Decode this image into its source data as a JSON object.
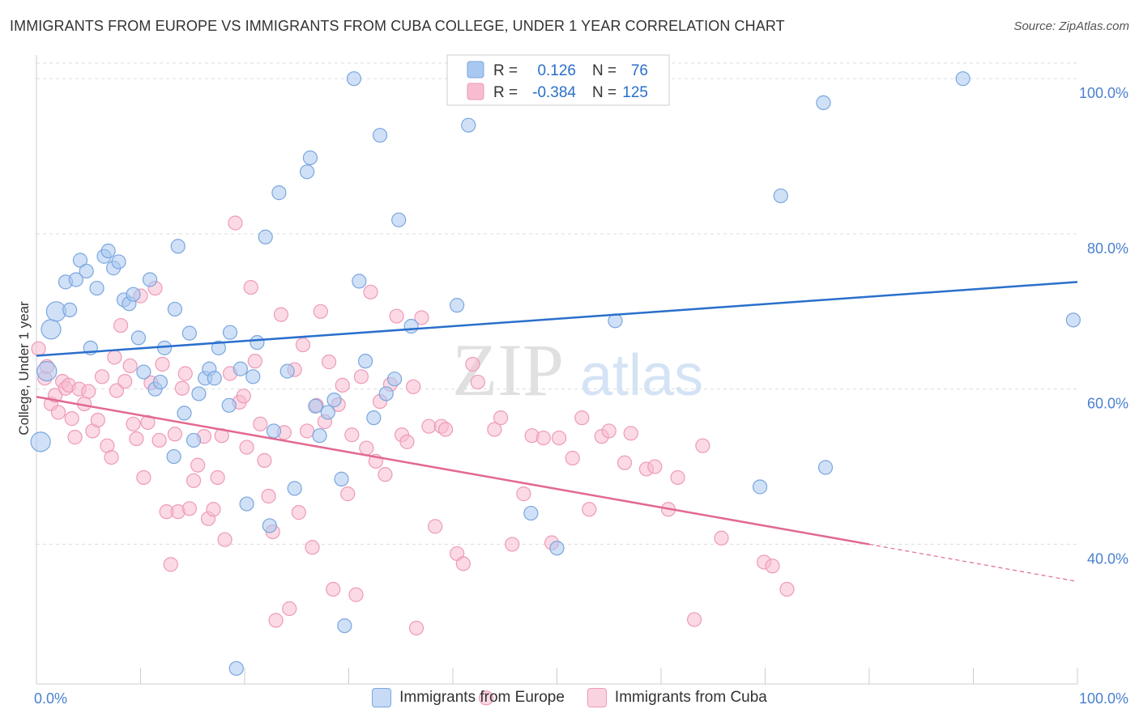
{
  "header": {
    "title": "IMMIGRANTS FROM EUROPE VS IMMIGRANTS FROM CUBA COLLEGE, UNDER 1 YEAR CORRELATION CHART",
    "source": "Source: ZipAtlas.com"
  },
  "watermark": {
    "zip": "ZIP",
    "atlas": "atlas"
  },
  "legend_top": [
    {
      "r_label": "R =",
      "r_value": "0.126",
      "n_label": "N =",
      "n_value": "76"
    },
    {
      "r_label": "R =",
      "r_value": "-0.384",
      "n_label": "N =",
      "n_value": "125"
    }
  ],
  "legend_bottom": [
    {
      "label": "Immigrants from Europe"
    },
    {
      "label": "Immigrants from Cuba"
    }
  ],
  "colors": {
    "europe_fill": "#a9c8f0",
    "europe_stroke": "#7aa6df",
    "europe_line": "#2a6fcc",
    "cuba_fill": "#f7bcd0",
    "cuba_stroke": "#ee9ab8",
    "cuba_line": "#e2698f",
    "tick_label": "#4a80d0",
    "grid": "#dddddd"
  },
  "chart_data": {
    "type": "scatter",
    "xlabel": "",
    "ylabel": "College, Under 1 year",
    "xlim": [
      0,
      100
    ],
    "ylim": [
      22,
      102
    ],
    "x_tick_labels": [
      "0.0%",
      "100.0%"
    ],
    "y_ticks": [
      40,
      60,
      80,
      100
    ],
    "y_tick_labels": [
      "40.0%",
      "60.0%",
      "80.0%",
      "100.0%"
    ],
    "grid": true,
    "series": [
      {
        "name": "Immigrants from Europe",
        "trend": {
          "x": [
            0,
            100
          ],
          "y": [
            64.3,
            73.8
          ]
        },
        "points": [
          {
            "x": 0.4,
            "y": 53.2
          },
          {
            "x": 1.0,
            "y": 62.3
          },
          {
            "x": 1.4,
            "y": 67.7
          },
          {
            "x": 1.9,
            "y": 70.0
          },
          {
            "x": 3.2,
            "y": 70.2
          },
          {
            "x": 2.8,
            "y": 73.8
          },
          {
            "x": 3.8,
            "y": 74.1
          },
          {
            "x": 4.2,
            "y": 76.6
          },
          {
            "x": 4.8,
            "y": 75.2
          },
          {
            "x": 5.2,
            "y": 65.3
          },
          {
            "x": 5.8,
            "y": 73.0
          },
          {
            "x": 6.5,
            "y": 77.1
          },
          {
            "x": 6.9,
            "y": 77.8
          },
          {
            "x": 7.4,
            "y": 75.6
          },
          {
            "x": 7.9,
            "y": 76.4
          },
          {
            "x": 8.4,
            "y": 71.5
          },
          {
            "x": 8.9,
            "y": 71.0
          },
          {
            "x": 9.3,
            "y": 72.2
          },
          {
            "x": 9.8,
            "y": 66.6
          },
          {
            "x": 10.3,
            "y": 62.2
          },
          {
            "x": 10.9,
            "y": 74.1
          },
          {
            "x": 11.4,
            "y": 60.0
          },
          {
            "x": 11.9,
            "y": 60.9
          },
          {
            "x": 12.3,
            "y": 65.3
          },
          {
            "x": 13.2,
            "y": 51.3
          },
          {
            "x": 13.3,
            "y": 70.3
          },
          {
            "x": 13.6,
            "y": 78.4
          },
          {
            "x": 14.2,
            "y": 56.9
          },
          {
            "x": 14.7,
            "y": 67.2
          },
          {
            "x": 15.1,
            "y": 53.4
          },
          {
            "x": 15.6,
            "y": 59.4
          },
          {
            "x": 16.2,
            "y": 61.4
          },
          {
            "x": 16.6,
            "y": 62.6
          },
          {
            "x": 17.1,
            "y": 61.4
          },
          {
            "x": 17.5,
            "y": 65.3
          },
          {
            "x": 18.5,
            "y": 57.9
          },
          {
            "x": 18.6,
            "y": 67.3
          },
          {
            "x": 19.2,
            "y": 24.0
          },
          {
            "x": 19.6,
            "y": 62.6
          },
          {
            "x": 20.2,
            "y": 45.2
          },
          {
            "x": 20.8,
            "y": 61.6
          },
          {
            "x": 21.2,
            "y": 66.0
          },
          {
            "x": 22.0,
            "y": 79.6
          },
          {
            "x": 22.4,
            "y": 42.4
          },
          {
            "x": 22.8,
            "y": 54.6
          },
          {
            "x": 23.3,
            "y": 85.3
          },
          {
            "x": 24.1,
            "y": 62.3
          },
          {
            "x": 24.8,
            "y": 47.2
          },
          {
            "x": 26.0,
            "y": 88.0
          },
          {
            "x": 26.3,
            "y": 89.8
          },
          {
            "x": 26.8,
            "y": 57.8
          },
          {
            "x": 27.2,
            "y": 54.0
          },
          {
            "x": 28.0,
            "y": 57.0
          },
          {
            "x": 28.6,
            "y": 58.6
          },
          {
            "x": 29.3,
            "y": 48.4
          },
          {
            "x": 29.6,
            "y": 29.5
          },
          {
            "x": 30.5,
            "y": 100.0
          },
          {
            "x": 31.0,
            "y": 73.9
          },
          {
            "x": 31.6,
            "y": 63.6
          },
          {
            "x": 32.4,
            "y": 56.3
          },
          {
            "x": 33.0,
            "y": 92.7
          },
          {
            "x": 33.6,
            "y": 59.4
          },
          {
            "x": 34.4,
            "y": 61.3
          },
          {
            "x": 34.8,
            "y": 81.8
          },
          {
            "x": 36.0,
            "y": 68.1
          },
          {
            "x": 40.4,
            "y": 70.8
          },
          {
            "x": 41.5,
            "y": 94.0
          },
          {
            "x": 47.5,
            "y": 44.0
          },
          {
            "x": 50.0,
            "y": 39.5
          },
          {
            "x": 51.0,
            "y": 100.0
          },
          {
            "x": 55.6,
            "y": 68.8
          },
          {
            "x": 69.5,
            "y": 47.4
          },
          {
            "x": 71.5,
            "y": 84.9
          },
          {
            "x": 75.6,
            "y": 96.9
          },
          {
            "x": 75.8,
            "y": 49.9
          },
          {
            "x": 89.0,
            "y": 100.0
          },
          {
            "x": 99.6,
            "y": 68.9
          }
        ]
      },
      {
        "name": "Immigrants from Cuba",
        "trend": {
          "x": [
            0,
            80
          ],
          "y": [
            59.0,
            40.0
          ]
        },
        "trend_dash": {
          "x": [
            80,
            100
          ],
          "y": [
            40.0,
            35.2
          ]
        },
        "points": [
          {
            "x": 0.2,
            "y": 65.2
          },
          {
            "x": 0.8,
            "y": 61.4
          },
          {
            "x": 1.0,
            "y": 62.9
          },
          {
            "x": 1.4,
            "y": 58.1
          },
          {
            "x": 1.8,
            "y": 59.2
          },
          {
            "x": 2.1,
            "y": 57.0
          },
          {
            "x": 2.5,
            "y": 61.0
          },
          {
            "x": 2.8,
            "y": 60.1
          },
          {
            "x": 3.1,
            "y": 60.5
          },
          {
            "x": 3.4,
            "y": 56.2
          },
          {
            "x": 3.7,
            "y": 53.8
          },
          {
            "x": 4.1,
            "y": 60.0
          },
          {
            "x": 4.6,
            "y": 58.1
          },
          {
            "x": 5.0,
            "y": 59.7
          },
          {
            "x": 5.4,
            "y": 54.6
          },
          {
            "x": 5.9,
            "y": 56.0
          },
          {
            "x": 6.3,
            "y": 61.6
          },
          {
            "x": 6.8,
            "y": 52.7
          },
          {
            "x": 7.2,
            "y": 51.2
          },
          {
            "x": 7.5,
            "y": 64.1
          },
          {
            "x": 7.7,
            "y": 59.8
          },
          {
            "x": 8.1,
            "y": 68.2
          },
          {
            "x": 8.5,
            "y": 61.0
          },
          {
            "x": 9.0,
            "y": 63.0
          },
          {
            "x": 9.3,
            "y": 55.5
          },
          {
            "x": 9.6,
            "y": 53.6
          },
          {
            "x": 10.0,
            "y": 72.0
          },
          {
            "x": 10.3,
            "y": 48.6
          },
          {
            "x": 10.7,
            "y": 55.7
          },
          {
            "x": 11.0,
            "y": 60.8
          },
          {
            "x": 11.4,
            "y": 73.0
          },
          {
            "x": 11.8,
            "y": 53.4
          },
          {
            "x": 12.1,
            "y": 63.2
          },
          {
            "x": 12.5,
            "y": 44.2
          },
          {
            "x": 12.9,
            "y": 37.4
          },
          {
            "x": 13.3,
            "y": 54.2
          },
          {
            "x": 13.6,
            "y": 44.2
          },
          {
            "x": 14.0,
            "y": 60.1
          },
          {
            "x": 14.3,
            "y": 62.0
          },
          {
            "x": 14.7,
            "y": 44.6
          },
          {
            "x": 15.1,
            "y": 48.2
          },
          {
            "x": 15.5,
            "y": 50.2
          },
          {
            "x": 16.1,
            "y": 53.9
          },
          {
            "x": 16.5,
            "y": 43.3
          },
          {
            "x": 17.0,
            "y": 44.5
          },
          {
            "x": 17.4,
            "y": 48.6
          },
          {
            "x": 17.8,
            "y": 54.0
          },
          {
            "x": 18.1,
            "y": 40.6
          },
          {
            "x": 18.6,
            "y": 62.0
          },
          {
            "x": 19.1,
            "y": 81.4
          },
          {
            "x": 19.5,
            "y": 58.3
          },
          {
            "x": 19.9,
            "y": 59.1
          },
          {
            "x": 20.2,
            "y": 52.5
          },
          {
            "x": 20.6,
            "y": 73.1
          },
          {
            "x": 21.0,
            "y": 63.6
          },
          {
            "x": 21.5,
            "y": 55.5
          },
          {
            "x": 21.9,
            "y": 50.8
          },
          {
            "x": 22.3,
            "y": 46.2
          },
          {
            "x": 22.7,
            "y": 41.6
          },
          {
            "x": 23.0,
            "y": 30.2
          },
          {
            "x": 23.5,
            "y": 69.6
          },
          {
            "x": 23.8,
            "y": 54.4
          },
          {
            "x": 24.3,
            "y": 31.7
          },
          {
            "x": 24.8,
            "y": 62.5
          },
          {
            "x": 25.2,
            "y": 44.1
          },
          {
            "x": 25.6,
            "y": 65.7
          },
          {
            "x": 26.0,
            "y": 54.6
          },
          {
            "x": 26.5,
            "y": 39.6
          },
          {
            "x": 26.9,
            "y": 57.9
          },
          {
            "x": 27.3,
            "y": 70.0
          },
          {
            "x": 27.7,
            "y": 55.8
          },
          {
            "x": 28.1,
            "y": 63.5
          },
          {
            "x": 28.5,
            "y": 34.2
          },
          {
            "x": 29.0,
            "y": 58.0
          },
          {
            "x": 29.4,
            "y": 60.5
          },
          {
            "x": 29.9,
            "y": 46.5
          },
          {
            "x": 30.3,
            "y": 54.1
          },
          {
            "x": 30.7,
            "y": 33.5
          },
          {
            "x": 31.2,
            "y": 61.6
          },
          {
            "x": 31.7,
            "y": 52.4
          },
          {
            "x": 32.1,
            "y": 72.5
          },
          {
            "x": 32.6,
            "y": 50.7
          },
          {
            "x": 33.0,
            "y": 58.4
          },
          {
            "x": 33.5,
            "y": 49.0
          },
          {
            "x": 34.0,
            "y": 60.6
          },
          {
            "x": 34.6,
            "y": 69.4
          },
          {
            "x": 35.1,
            "y": 54.1
          },
          {
            "x": 35.6,
            "y": 53.2
          },
          {
            "x": 36.2,
            "y": 60.3
          },
          {
            "x": 36.5,
            "y": 29.2
          },
          {
            "x": 37.0,
            "y": 69.2
          },
          {
            "x": 37.7,
            "y": 55.2
          },
          {
            "x": 38.3,
            "y": 42.3
          },
          {
            "x": 38.9,
            "y": 55.2
          },
          {
            "x": 39.3,
            "y": 54.8
          },
          {
            "x": 40.4,
            "y": 38.8
          },
          {
            "x": 41.0,
            "y": 37.5
          },
          {
            "x": 41.9,
            "y": 63.2
          },
          {
            "x": 42.4,
            "y": 60.9
          },
          {
            "x": 43.2,
            "y": 20.2
          },
          {
            "x": 44.0,
            "y": 54.8
          },
          {
            "x": 44.6,
            "y": 56.3
          },
          {
            "x": 45.7,
            "y": 40.0
          },
          {
            "x": 46.8,
            "y": 46.5
          },
          {
            "x": 47.6,
            "y": 54.0
          },
          {
            "x": 48.7,
            "y": 53.7
          },
          {
            "x": 49.5,
            "y": 40.2
          },
          {
            "x": 50.2,
            "y": 53.7
          },
          {
            "x": 51.5,
            "y": 51.1
          },
          {
            "x": 52.4,
            "y": 56.3
          },
          {
            "x": 53.1,
            "y": 44.5
          },
          {
            "x": 54.3,
            "y": 53.9
          },
          {
            "x": 55.0,
            "y": 54.6
          },
          {
            "x": 56.5,
            "y": 50.5
          },
          {
            "x": 57.1,
            "y": 54.3
          },
          {
            "x": 58.6,
            "y": 49.7
          },
          {
            "x": 59.4,
            "y": 50.0
          },
          {
            "x": 60.7,
            "y": 44.5
          },
          {
            "x": 61.6,
            "y": 48.6
          },
          {
            "x": 63.2,
            "y": 30.3
          },
          {
            "x": 64.0,
            "y": 52.7
          },
          {
            "x": 65.8,
            "y": 40.8
          },
          {
            "x": 69.9,
            "y": 37.7
          },
          {
            "x": 70.7,
            "y": 37.2
          },
          {
            "x": 72.1,
            "y": 34.2
          }
        ]
      }
    ]
  }
}
